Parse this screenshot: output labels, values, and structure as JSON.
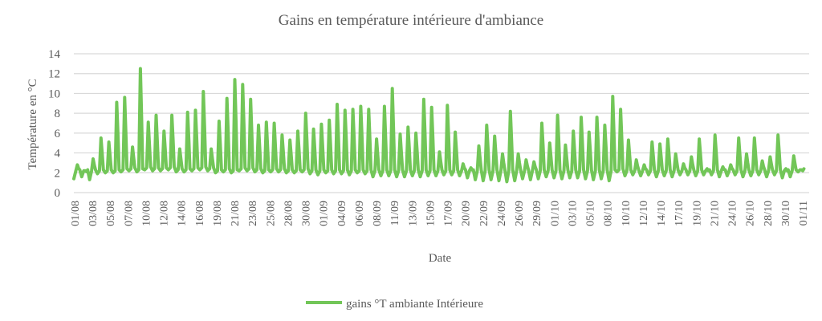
{
  "chart_data": {
    "type": "line",
    "title": "Gains en température intérieure d'ambiance",
    "xlabel": "Date",
    "ylabel": "Température en °C",
    "ylim": [
      0,
      14
    ],
    "yticks": [
      0,
      2,
      4,
      6,
      8,
      10,
      12,
      14
    ],
    "grid": true,
    "legend_position": "bottom",
    "xtick_labels": [
      "01/08",
      "03/08",
      "05/08",
      "07/08",
      "10/08",
      "12/08",
      "14/08",
      "16/08",
      "19/08",
      "21/08",
      "23/08",
      "25/08",
      "28/08",
      "30/08",
      "01/09",
      "04/09",
      "06/09",
      "08/09",
      "11/09",
      "13/09",
      "15/09",
      "17/09",
      "20/09",
      "22/09",
      "24/09",
      "26/09",
      "29/09",
      "01/10",
      "03/10",
      "05/10",
      "08/10",
      "10/10",
      "12/10",
      "14/10",
      "17/10",
      "19/10",
      "21/10",
      "24/10",
      "26/10",
      "28/10",
      "30/10",
      "01/11"
    ],
    "series": [
      {
        "name": "gains °T ambiante Intérieure",
        "color": "#72c658",
        "daily_max": [
          2.8,
          2.2,
          3.4,
          5.5,
          5.1,
          9.1,
          9.6,
          4.6,
          12.5,
          7.1,
          7.8,
          6.2,
          7.8,
          4.4,
          8.1,
          8.3,
          10.2,
          4.4,
          7.2,
          9.5,
          11.4,
          10.9,
          9.4,
          6.8,
          7.1,
          7.0,
          5.8,
          5.3,
          6.2,
          8.0,
          6.4,
          6.9,
          7.3,
          8.9,
          8.3,
          8.4,
          8.7,
          8.4,
          5.4,
          8.7,
          10.5,
          5.9,
          6.6,
          6.0,
          9.4,
          8.6,
          4.1,
          8.8,
          6.1,
          2.9,
          2.5,
          4.7,
          6.8,
          5.7,
          3.9,
          8.2,
          3.9,
          3.3,
          3.1,
          7.0,
          5.0,
          7.8,
          4.8,
          6.2,
          7.6,
          6.1,
          7.6,
          6.8,
          9.7,
          8.4,
          5.3,
          3.3,
          2.8,
          5.1,
          4.9,
          5.4,
          3.9,
          2.9,
          3.6,
          5.4,
          2.4,
          5.8,
          2.6,
          2.8,
          5.5,
          3.9,
          5.5,
          3.2,
          3.6,
          5.8,
          2.4,
          3.7,
          2.3
        ],
        "daily_min": [
          1.4,
          1.6,
          1.3,
          1.9,
          2.0,
          2.0,
          2.1,
          2.2,
          2.1,
          2.3,
          2.2,
          2.2,
          2.3,
          2.1,
          2.1,
          2.2,
          2.3,
          2.2,
          2.0,
          2.1,
          2.0,
          2.2,
          2.2,
          2.1,
          2.0,
          2.1,
          2.1,
          2.0,
          2.0,
          2.1,
          1.9,
          1.8,
          2.0,
          1.9,
          1.9,
          1.8,
          2.0,
          1.9,
          1.6,
          1.7,
          1.7,
          1.6,
          1.6,
          1.7,
          1.6,
          1.7,
          1.7,
          1.8,
          1.8,
          1.7,
          1.5,
          1.3,
          1.2,
          1.3,
          1.2,
          1.1,
          1.2,
          1.4,
          1.3,
          1.4,
          1.6,
          1.5,
          1.4,
          1.5,
          1.5,
          1.4,
          1.3,
          1.4,
          1.2,
          2.1,
          1.7,
          1.8,
          1.7,
          1.8,
          1.6,
          1.7,
          1.6,
          1.8,
          1.8,
          1.7,
          1.8,
          1.8,
          1.6,
          1.7,
          1.8,
          1.6,
          1.7,
          1.8,
          1.6,
          1.8,
          1.5,
          1.6,
          2.1
        ]
      }
    ]
  }
}
